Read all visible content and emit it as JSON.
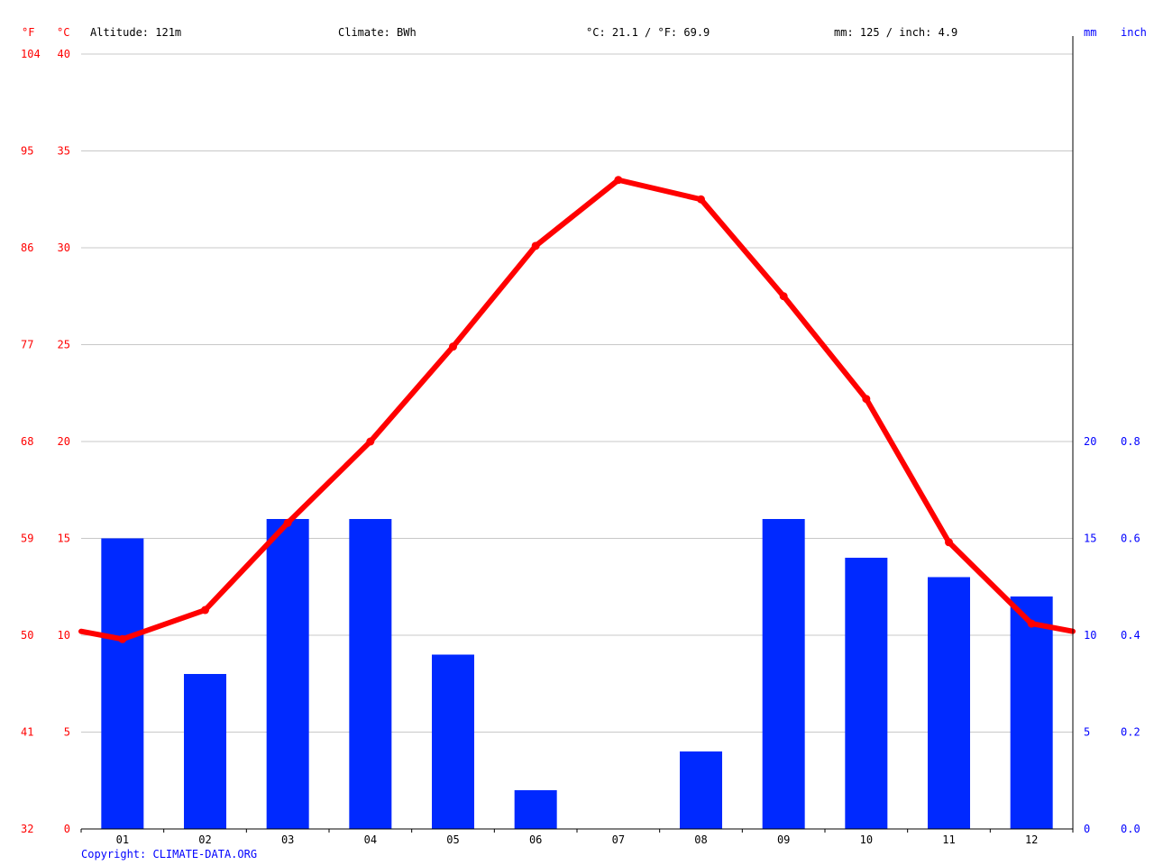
{
  "header": {
    "unit_f": "°F",
    "unit_c": "°C",
    "altitude": "Altitude: 121m",
    "climate": "Climate: BWh",
    "temp_avg": "°C: 21.1 / °F: 69.9",
    "precip_total": "mm: 125 / inch: 4.9",
    "unit_mm": "mm",
    "unit_inch": "inch"
  },
  "footer": {
    "copyright": "Copyright: CLIMATE-DATA.ORG"
  },
  "colors": {
    "temperature": "#ff0000",
    "precipitation": "#0029ff",
    "grid": "#c8c8c8",
    "axis": "#000000"
  },
  "chart_data": {
    "type": "bar",
    "categories": [
      "01",
      "02",
      "03",
      "04",
      "05",
      "06",
      "07",
      "08",
      "09",
      "10",
      "11",
      "12"
    ],
    "series": [
      {
        "kind": "bar",
        "axis": "right",
        "values": [
          15,
          8,
          16,
          16,
          9,
          2,
          0,
          4,
          16,
          14,
          13,
          12
        ]
      },
      {
        "kind": "line",
        "axis": "left",
        "values": [
          9.8,
          11.3,
          15.8,
          20.0,
          24.9,
          30.1,
          33.5,
          32.5,
          27.5,
          22.2,
          14.8,
          10.6
        ]
      }
    ],
    "y_left_c": {
      "ticks": [
        "0",
        "5",
        "10",
        "15",
        "20",
        "25",
        "30",
        "35",
        "40"
      ],
      "range": [
        0,
        40
      ]
    },
    "y_left_f": {
      "ticks": [
        "32",
        "41",
        "50",
        "59",
        "68",
        "77",
        "86",
        "95",
        "104"
      ]
    },
    "y_right_mm": {
      "ticks": [
        "0",
        "5",
        "10",
        "15",
        "20"
      ],
      "range": [
        0,
        40
      ]
    },
    "y_right_inch": {
      "ticks": [
        "0.0",
        "0.2",
        "0.4",
        "0.6",
        "0.8"
      ]
    },
    "grid": true
  }
}
